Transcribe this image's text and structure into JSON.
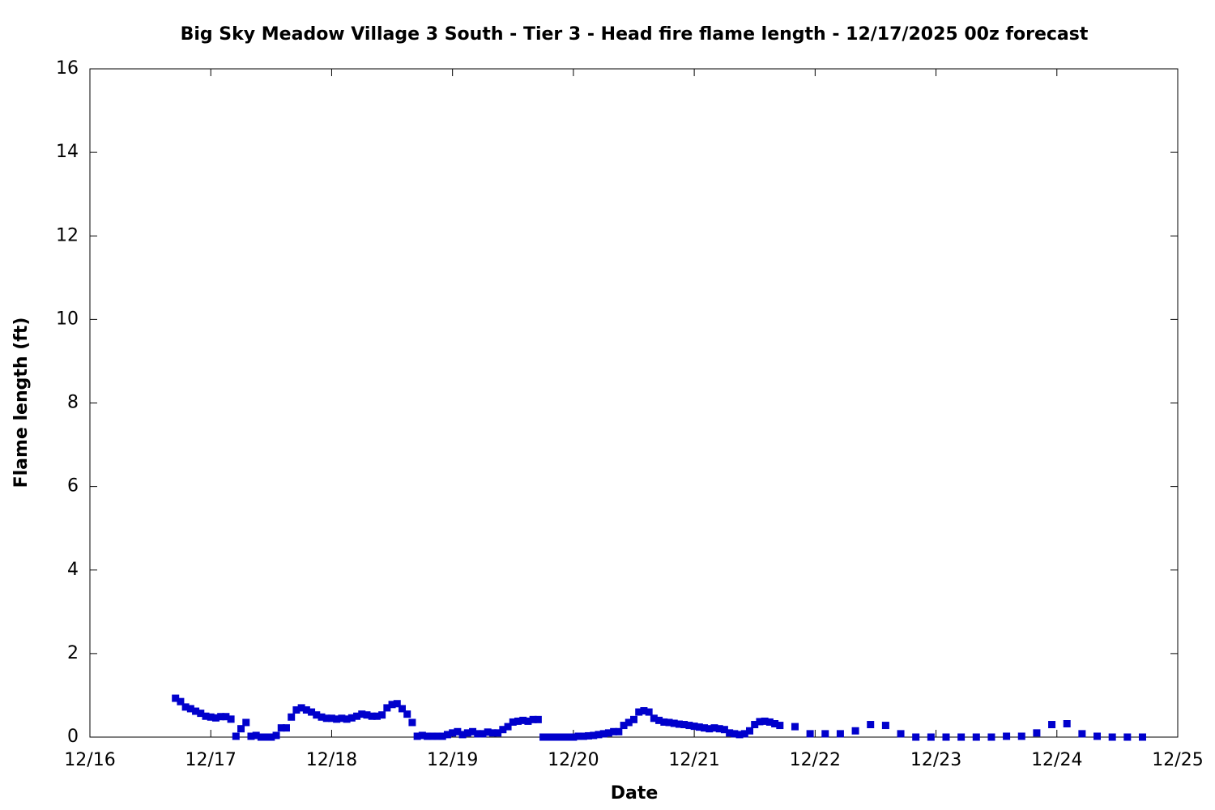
{
  "chart_data": {
    "type": "scatter",
    "title": "Big Sky Meadow Village 3 South - Tier 3 - Head fire flame length - 12/17/2025 00z forecast",
    "x_label": "Date",
    "y_label": "Flame length (ft)",
    "color": "#0000cc",
    "x": [
      17,
      18,
      19,
      20,
      21,
      22,
      23,
      24,
      25,
      26,
      27,
      28,
      29,
      30,
      31,
      32,
      33,
      34,
      35,
      36,
      37,
      38,
      39,
      40,
      41,
      42,
      43,
      44,
      45,
      46,
      47,
      48,
      49,
      50,
      51,
      52,
      53,
      54,
      55,
      56,
      57,
      58,
      59,
      60,
      61,
      62,
      63,
      64,
      65,
      66,
      67,
      68,
      69,
      70,
      71,
      72,
      73,
      74,
      75,
      76,
      77,
      78,
      79,
      80,
      81,
      82,
      83,
      84,
      85,
      86,
      87,
      88,
      89,
      90,
      91,
      92,
      93,
      94,
      95,
      96,
      97,
      98,
      99,
      100,
      101,
      102,
      103,
      104,
      105,
      106,
      107,
      108,
      109,
      110,
      111,
      112,
      113,
      114,
      115,
      116,
      117,
      118,
      119,
      120,
      121,
      122,
      123,
      124,
      125,
      126,
      127,
      128,
      129,
      130,
      131,
      132,
      133,
      134,
      135,
      136,
      137,
      140,
      143,
      146,
      149,
      152,
      155,
      158,
      161,
      164,
      167,
      170,
      173,
      176,
      179,
      182,
      185,
      188,
      191,
      194,
      197,
      200,
      203,
      206,
      209
    ],
    "values": [
      0.93,
      0.85,
      0.72,
      0.68,
      0.62,
      0.57,
      0.5,
      0.48,
      0.46,
      0.49,
      0.49,
      0.43,
      0.02,
      0.2,
      0.35,
      0.02,
      0.04,
      0,
      0,
      0,
      0.04,
      0.22,
      0.22,
      0.48,
      0.65,
      0.7,
      0.65,
      0.6,
      0.53,
      0.48,
      0.45,
      0.45,
      0.43,
      0.45,
      0.43,
      0.46,
      0.5,
      0.55,
      0.53,
      0.5,
      0.5,
      0.53,
      0.7,
      0.78,
      0.8,
      0.68,
      0.55,
      0.35,
      0.02,
      0.04,
      0.02,
      0.02,
      0.02,
      0.02,
      0.06,
      0.1,
      0.13,
      0.06,
      0.1,
      0.13,
      0.08,
      0.08,
      0.12,
      0.1,
      0.1,
      0.18,
      0.25,
      0.36,
      0.38,
      0.4,
      0.38,
      0.42,
      0.42,
      0,
      0,
      0,
      0,
      0,
      0,
      0,
      0.02,
      0.02,
      0.03,
      0.04,
      0.06,
      0.08,
      0.1,
      0.13,
      0.13,
      0.28,
      0.35,
      0.42,
      0.6,
      0.63,
      0.6,
      0.45,
      0.4,
      0.36,
      0.35,
      0.33,
      0.31,
      0.3,
      0.28,
      0.26,
      0.24,
      0.22,
      0.2,
      0.22,
      0.2,
      0.18,
      0.1,
      0.08,
      0.06,
      0.08,
      0.15,
      0.3,
      0.37,
      0.38,
      0.36,
      0.32,
      0.28,
      0.25,
      0.08,
      0.08,
      0.08,
      0.15,
      0.3,
      0.28,
      0.08,
      0,
      0,
      0,
      0,
      0,
      0,
      0.02,
      0.02,
      0.1,
      0.3,
      0.32,
      0.08,
      0.02,
      0,
      0,
      0
    ],
    "xlim": [
      0,
      216
    ],
    "xticks": [
      {
        "value": 0,
        "label": "12/16"
      },
      {
        "value": 24,
        "label": "12/17"
      },
      {
        "value": 48,
        "label": "12/18"
      },
      {
        "value": 72,
        "label": "12/19"
      },
      {
        "value": 96,
        "label": "12/20"
      },
      {
        "value": 120,
        "label": "12/21"
      },
      {
        "value": 144,
        "label": "12/22"
      },
      {
        "value": 168,
        "label": "12/23"
      },
      {
        "value": 192,
        "label": "12/24"
      },
      {
        "value": 216,
        "label": "12/25"
      }
    ],
    "ylim": [
      0,
      16
    ],
    "yticks": [
      0,
      2,
      4,
      6,
      8,
      10,
      12,
      14,
      16
    ]
  }
}
